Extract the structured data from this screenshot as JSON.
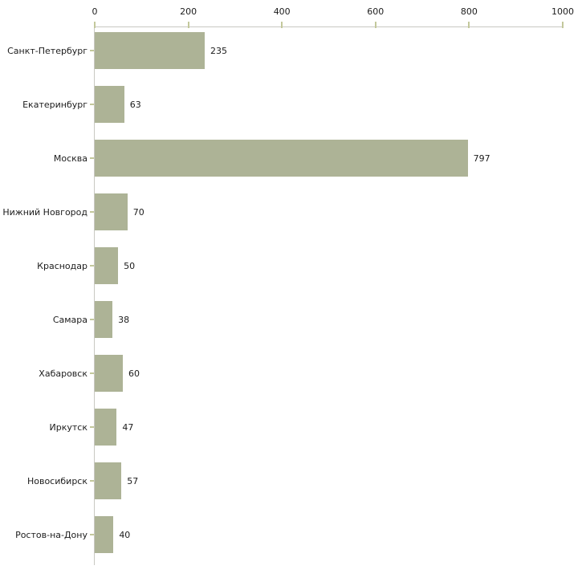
{
  "chart_data": {
    "type": "bar",
    "orientation": "horizontal",
    "title": "",
    "xlabel": "",
    "ylabel": "",
    "categories": [
      "Санкт-Петербург",
      "Екатеринбург",
      "Москва",
      "Нижний Новгород",
      "Краснодар",
      "Самара",
      "Хабаровск",
      "Иркутск",
      "Новосибирск",
      "Ростов-на-Дону"
    ],
    "values": [
      235,
      63,
      797,
      70,
      50,
      38,
      60,
      47,
      57,
      40
    ],
    "xlim": [
      0,
      1000
    ],
    "xticks": [
      0,
      200,
      400,
      600,
      800,
      1000
    ],
    "x_axis_position": "top",
    "grid": false,
    "legend": false,
    "value_labels": true,
    "colors": {
      "bar_fill": "#adb396",
      "axis_line": "#c8c8c2",
      "tick_mark": "#c3c89b",
      "text": "#1c1c1c",
      "background": "#ffffff"
    }
  }
}
